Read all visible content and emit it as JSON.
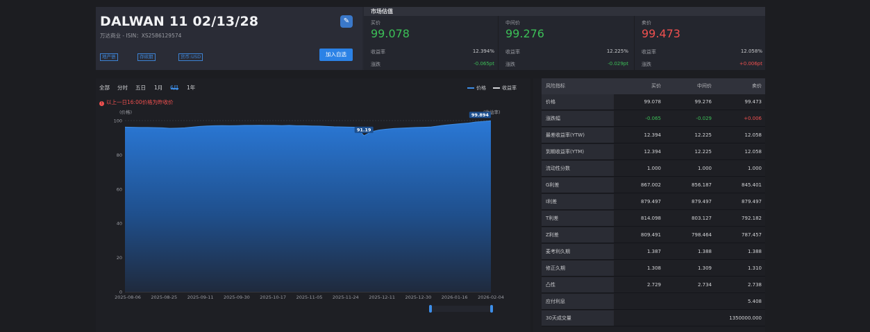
{
  "header": {
    "bond_name": "DALWAN 11 02/13/28",
    "subtitle": "万达商业 - ISIN：XS2586129574",
    "tags": [
      "地产债",
      "存续期",
      "货币:USD"
    ],
    "add_button": "加入自选",
    "edit_icon": "edit-icon"
  },
  "market": {
    "title": "市场估值",
    "quotes": [
      {
        "label": "买价",
        "price": "99.078",
        "yield_label": "收益率",
        "yield": "12.394%",
        "change_label": "涨跌",
        "change": "-0.065pt",
        "price_color": "#3cbf57",
        "change_color": "#3cbf57"
      },
      {
        "label": "中间价",
        "price": "99.276",
        "yield_label": "收益率",
        "yield": "12.225%",
        "change_label": "涨跌",
        "change": "-0.029pt",
        "price_color": "#3cbf57",
        "change_color": "#3cbf57"
      },
      {
        "label": "卖价",
        "price": "99.473",
        "yield_label": "收益率",
        "yield": "12.058%",
        "change_label": "涨跌",
        "change": "+0.006pt",
        "price_color": "#f0504f",
        "change_color": "#f0504f"
      }
    ]
  },
  "chart_panel": {
    "tabs": [
      "全部",
      "分时",
      "五日",
      "1月",
      "6月",
      "1年"
    ],
    "active_tab": "6月",
    "legend": [
      {
        "name": "价格",
        "color": "#3d8ee8"
      },
      {
        "name": "收益率",
        "color": "#d4d5d8"
      }
    ],
    "note": "以上一日16:00价格为昨收价",
    "note_icon": "alert-icon"
  },
  "chart_data": {
    "type": "area",
    "ylabel": "(价格)",
    "y2label": "(收益率)",
    "ylim": [
      0,
      100
    ],
    "yticks": [
      0,
      20,
      40,
      60,
      80,
      100
    ],
    "xticks": [
      "2025-08-06",
      "2025-08-25",
      "2025-09-11",
      "2025-09-30",
      "2025-10-17",
      "2025-11-05",
      "2025-11-24",
      "2025-12-11",
      "2025-12-30",
      "2026-01-16",
      "2026-02-04"
    ],
    "series": [
      {
        "name": "价格",
        "color": "#2a76d2",
        "values": [
          96.2,
          96.1,
          96.0,
          96.0,
          95.9,
          95.8,
          95.5,
          95.6,
          95.8,
          96.2,
          96.6,
          96.9,
          97.0,
          97.1,
          97.0,
          97.1,
          97.2,
          97.2,
          97.3,
          97.2,
          97.2,
          97.1,
          97.2,
          97.0,
          97.0,
          96.9,
          96.8,
          96.6,
          96.4,
          96.3,
          96.2,
          96.1,
          91.19,
          93.5,
          94.5,
          95.0,
          95.4,
          95.6,
          95.8,
          96.0,
          96.1,
          96.3,
          96.9,
          97.4,
          97.8,
          98.2,
          98.6,
          99.2,
          99.5,
          99.894
        ]
      }
    ],
    "annotations": [
      {
        "label": "91.19",
        "value": 91.19
      },
      {
        "label": "99.894",
        "value": 99.894
      }
    ]
  },
  "risk_table": {
    "headers": [
      "风险指标",
      "买价",
      "中间价",
      "卖价"
    ],
    "rows": [
      {
        "name": "价格",
        "bid": "99.078",
        "mid": "99.276",
        "ask": "99.473"
      },
      {
        "name": "涨跌幅",
        "bid": "-0.065",
        "mid": "-0.029",
        "ask": "+0.006",
        "bid_color": "#3cbf57",
        "mid_color": "#3cbf57",
        "ask_color": "#f0504f"
      },
      {
        "name": "最差收益率(YTW)",
        "bid": "12.394",
        "mid": "12.225",
        "ask": "12.058"
      },
      {
        "name": "到期收益率(YTM)",
        "bid": "12.394",
        "mid": "12.225",
        "ask": "12.058"
      },
      {
        "name": "流动性分数",
        "bid": "1.000",
        "mid": "1.000",
        "ask": "1.000"
      },
      {
        "name": "G利差",
        "bid": "867.002",
        "mid": "856.187",
        "ask": "845.401"
      },
      {
        "name": "I利差",
        "bid": "879.497",
        "mid": "879.497",
        "ask": "879.497"
      },
      {
        "name": "T利差",
        "bid": "814.098",
        "mid": "803.127",
        "ask": "792.182"
      },
      {
        "name": "Z利差",
        "bid": "809.491",
        "mid": "798.464",
        "ask": "787.457"
      },
      {
        "name": "麦考利久期",
        "bid": "1.387",
        "mid": "1.388",
        "ask": "1.388"
      },
      {
        "name": "修正久期",
        "bid": "1.308",
        "mid": "1.309",
        "ask": "1.310"
      },
      {
        "name": "凸性",
        "bid": "2.729",
        "mid": "2.734",
        "ask": "2.738"
      },
      {
        "name": "应付利息",
        "bid": "",
        "mid": "",
        "ask": "5.408"
      },
      {
        "name": "30天成交量",
        "bid": "",
        "mid": "",
        "ask": "1350000.000"
      }
    ]
  }
}
